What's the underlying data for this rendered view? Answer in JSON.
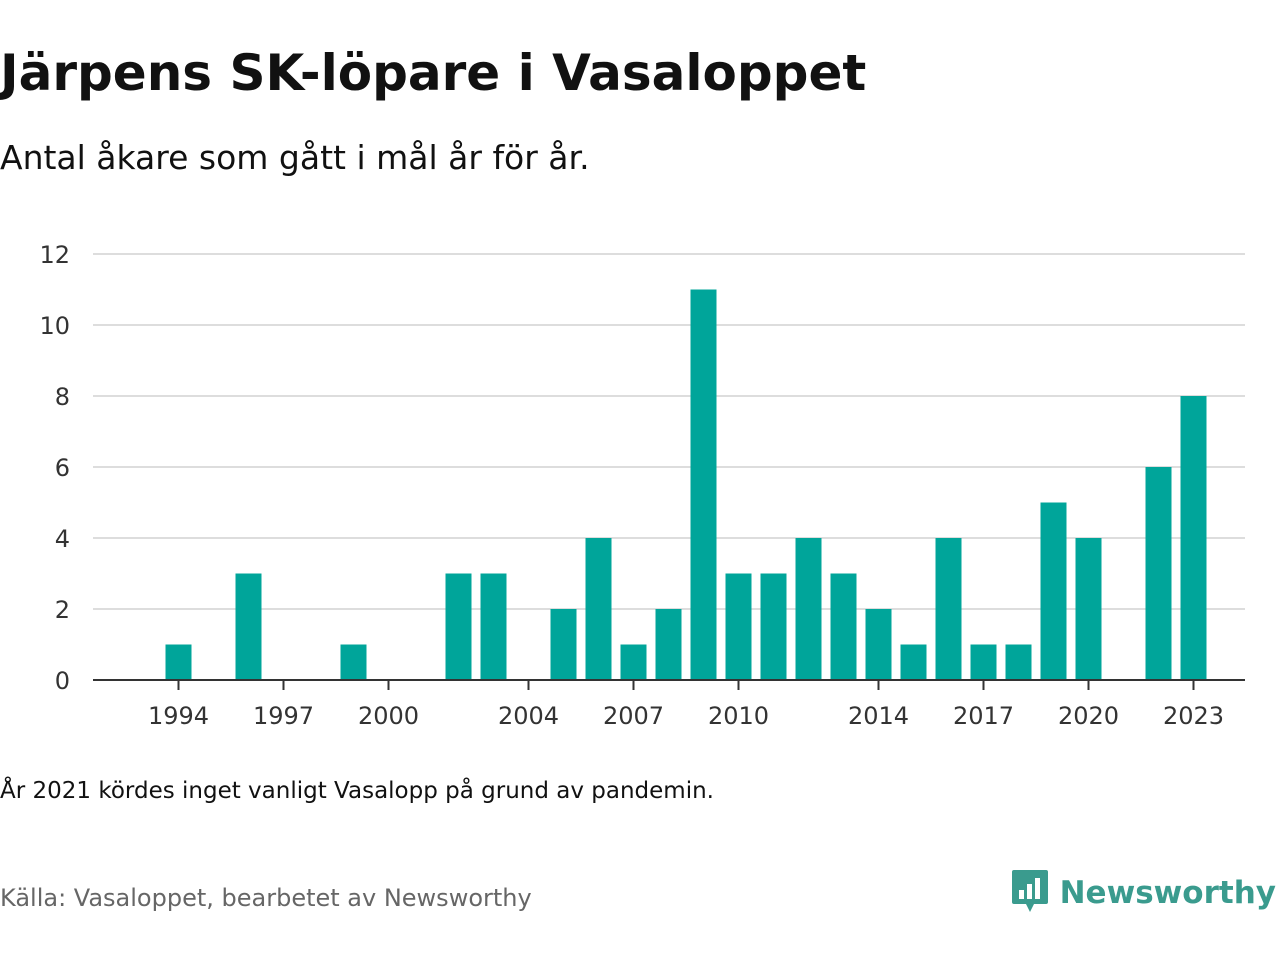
{
  "title": "Järpens SK-löpare i Vasaloppet",
  "subtitle": "Antal åkare som gått i mål år för år.",
  "note": "År 2021 kördes inget vanligt Vasalopp på grund av pandemin.",
  "source": "Källa: Vasaloppet, bearbetet av Newsworthy",
  "brand": {
    "name": "Newsworthy",
    "icon": "newsworthy-logo-icon"
  },
  "colors": {
    "bar": "#00a59a",
    "grid": "#dddddd",
    "axis": "#333333",
    "brand": "#3a9b8e"
  },
  "chart_data": {
    "type": "bar",
    "x": [
      1993,
      1994,
      1995,
      1996,
      1997,
      1998,
      1999,
      2000,
      2001,
      2002,
      2003,
      2004,
      2005,
      2006,
      2007,
      2008,
      2009,
      2010,
      2011,
      2012,
      2013,
      2014,
      2015,
      2016,
      2017,
      2018,
      2019,
      2020,
      2021,
      2022,
      2023
    ],
    "values": [
      0,
      1,
      0,
      3,
      0,
      0,
      1,
      0,
      0,
      3,
      3,
      0,
      2,
      4,
      1,
      2,
      11,
      3,
      3,
      4,
      3,
      2,
      1,
      4,
      1,
      1,
      5,
      4,
      0,
      6,
      8
    ],
    "ylim": [
      0,
      12
    ],
    "yticks": [
      0,
      2,
      4,
      6,
      8,
      10,
      12
    ],
    "xticks": [
      1994,
      1997,
      2000,
      2004,
      2007,
      2010,
      2014,
      2017,
      2020,
      2023
    ],
    "grid": true
  }
}
